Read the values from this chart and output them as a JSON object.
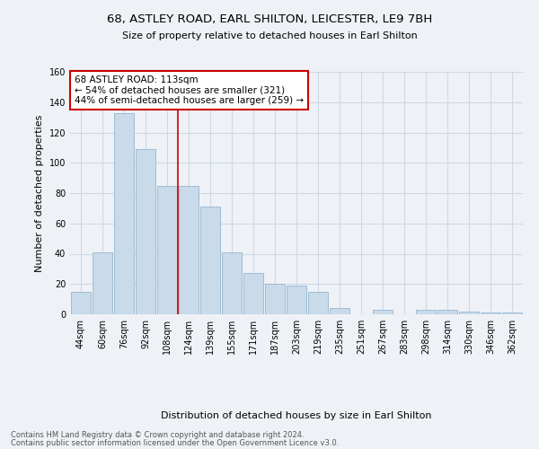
{
  "title_line1": "68, ASTLEY ROAD, EARL SHILTON, LEICESTER, LE9 7BH",
  "title_line2": "Size of property relative to detached houses in Earl Shilton",
  "xlabel": "Distribution of detached houses by size in Earl Shilton",
  "ylabel": "Number of detached properties",
  "categories": [
    "44sqm",
    "60sqm",
    "76sqm",
    "92sqm",
    "108sqm",
    "124sqm",
    "139sqm",
    "155sqm",
    "171sqm",
    "187sqm",
    "203sqm",
    "219sqm",
    "235sqm",
    "251sqm",
    "267sqm",
    "283sqm",
    "298sqm",
    "314sqm",
    "330sqm",
    "346sqm",
    "362sqm"
  ],
  "values": [
    15,
    41,
    133,
    109,
    85,
    85,
    71,
    41,
    27,
    20,
    19,
    15,
    4,
    0,
    3,
    0,
    3,
    3,
    2,
    1,
    1
  ],
  "bar_color": "#c9daea",
  "bar_edge_color": "#a0bcd4",
  "grid_color": "#d0d8e4",
  "background_color": "#eef2f7",
  "annotation_box_text": "68 ASTLEY ROAD: 113sqm\n← 54% of detached houses are smaller (321)\n44% of semi-detached houses are larger (259) →",
  "annotation_box_color": "#ffffff",
  "annotation_box_edge_color": "#cc0000",
  "red_line_x": 4.5,
  "ylim": [
    0,
    160
  ],
  "yticks": [
    0,
    20,
    40,
    60,
    80,
    100,
    120,
    140,
    160
  ],
  "footer_line1": "Contains HM Land Registry data © Crown copyright and database right 2024.",
  "footer_line2": "Contains public sector information licensed under the Open Government Licence v3.0."
}
